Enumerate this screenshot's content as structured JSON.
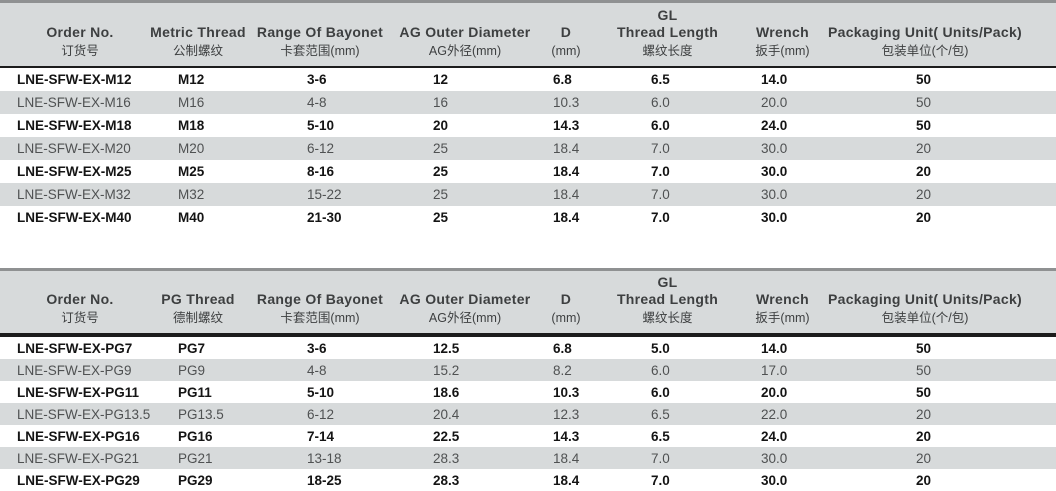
{
  "colors": {
    "header_bg": "#d7dadb",
    "row_alt_bg": "#d7dadb",
    "row_white_bg": "#ffffff",
    "top_border": "#8f9192",
    "header_rule": "#1c1c1c",
    "text_bold": "#141414",
    "text_regular": "#4f5152",
    "text_header": "#3d3f40"
  },
  "tables": [
    {
      "id": "metric-thread-table",
      "columns": [
        {
          "key": "order-no",
          "en": "Order No.",
          "zh": "订货号"
        },
        {
          "key": "metric-thread",
          "en": "Metric Thread",
          "zh": "公制螺纹"
        },
        {
          "key": "range-of-bayonet",
          "en": "Range Of Bayonet",
          "zh": "卡套范围(mm)"
        },
        {
          "key": "ag-outer-diameter",
          "en": "AG Outer Diameter",
          "zh": "AG外径(mm)"
        },
        {
          "key": "d",
          "en": "D",
          "zh": "(mm)"
        },
        {
          "key": "gl-thread-length",
          "top": "GL",
          "en": "Thread Length",
          "zh": "螺纹长度"
        },
        {
          "key": "wrench",
          "en": "Wrench",
          "zh": "扳手(mm)"
        },
        {
          "key": "packaging-unit",
          "en": "Packaging Unit( Units/Pack)",
          "zh": "包装单位(个/包)"
        }
      ],
      "rows": [
        {
          "bold": true,
          "cells": [
            "LNE-SFW-EX-M12",
            "M12",
            "3-6",
            "12",
            "6.8",
            "6.5",
            "14.0",
            "50"
          ]
        },
        {
          "bold": false,
          "cells": [
            "LNE-SFW-EX-M16",
            "M16",
            "4-8",
            "16",
            "10.3",
            "6.0",
            "20.0",
            "50"
          ]
        },
        {
          "bold": true,
          "cells": [
            "LNE-SFW-EX-M18",
            "M18",
            "5-10",
            "20",
            "14.3",
            "6.0",
            "24.0",
            "50"
          ]
        },
        {
          "bold": false,
          "cells": [
            "LNE-SFW-EX-M20",
            "M20",
            "6-12",
            "25",
            "18.4",
            "7.0",
            "30.0",
            "20"
          ]
        },
        {
          "bold": true,
          "cells": [
            "LNE-SFW-EX-M25",
            "M25",
            "8-16",
            "25",
            "18.4",
            "7.0",
            "30.0",
            "20"
          ]
        },
        {
          "bold": false,
          "cells": [
            "LNE-SFW-EX-M32",
            "M32",
            "15-22",
            "25",
            "18.4",
            "7.0",
            "30.0",
            "20"
          ]
        },
        {
          "bold": true,
          "cells": [
            "LNE-SFW-EX-M40",
            "M40",
            "21-30",
            "25",
            "18.4",
            "7.0",
            "30.0",
            "20"
          ]
        }
      ]
    },
    {
      "id": "pg-thread-table",
      "columns": [
        {
          "key": "order-no",
          "en": "Order No.",
          "zh": "订货号"
        },
        {
          "key": "pg-thread",
          "en": "PG Thread",
          "zh": "德制螺纹"
        },
        {
          "key": "range-of-bayonet",
          "en": "Range Of Bayonet",
          "zh": "卡套范围(mm)"
        },
        {
          "key": "ag-outer-diameter",
          "en": "AG Outer Diameter",
          "zh": "AG外径(mm)"
        },
        {
          "key": "d",
          "en": "D",
          "zh": "(mm)"
        },
        {
          "key": "gl-thread-length",
          "top": "GL",
          "en": "Thread Length",
          "zh": "螺纹长度"
        },
        {
          "key": "wrench",
          "en": "Wrench",
          "zh": "扳手(mm)"
        },
        {
          "key": "packaging-unit",
          "en": "Packaging Unit( Units/Pack)",
          "zh": "包装单位(个/包)"
        }
      ],
      "rows": [
        {
          "bold": true,
          "cells": [
            "LNE-SFW-EX-PG7",
            "PG7",
            "3-6",
            "12.5",
            "6.8",
            "5.0",
            "14.0",
            "50"
          ]
        },
        {
          "bold": false,
          "cells": [
            "LNE-SFW-EX-PG9",
            "PG9",
            "4-8",
            "15.2",
            "8.2",
            "6.0",
            "17.0",
            "50"
          ]
        },
        {
          "bold": true,
          "cells": [
            "LNE-SFW-EX-PG11",
            "PG11",
            "5-10",
            "18.6",
            "10.3",
            "6.0",
            "20.0",
            "50"
          ]
        },
        {
          "bold": false,
          "cells": [
            "LNE-SFW-EX-PG13.5",
            "PG13.5",
            "6-12",
            "20.4",
            "12.3",
            "6.5",
            "22.0",
            "20"
          ]
        },
        {
          "bold": true,
          "cells": [
            "LNE-SFW-EX-PG16",
            "PG16",
            "7-14",
            "22.5",
            "14.3",
            "6.5",
            "24.0",
            "20"
          ]
        },
        {
          "bold": false,
          "cells": [
            "LNE-SFW-EX-PG21",
            "PG21",
            "13-18",
            "28.3",
            "18.4",
            "7.0",
            "30.0",
            "20"
          ]
        },
        {
          "bold": true,
          "cells": [
            "LNE-SFW-EX-PG29",
            "PG29",
            "18-25",
            "28.3",
            "18.4",
            "7.0",
            "30.0",
            "20"
          ]
        }
      ]
    }
  ]
}
